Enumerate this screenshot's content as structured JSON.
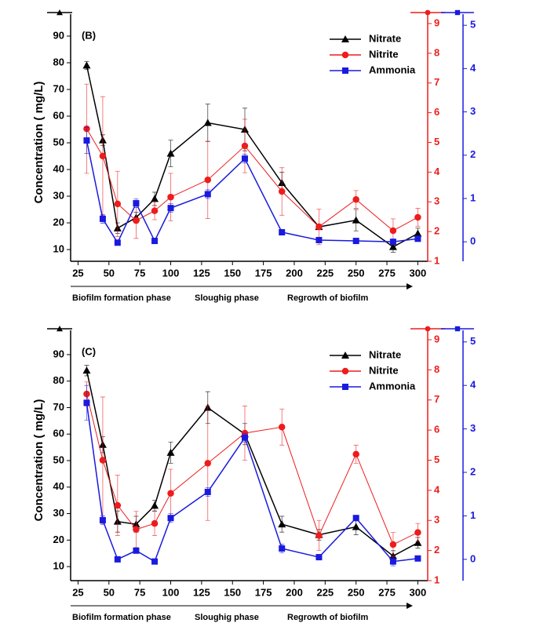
{
  "chart_data": [
    {
      "type": "line",
      "panel_label": "(B)",
      "y_label": "Concentration ( mg/L)",
      "x": [
        32,
        45,
        57,
        72,
        87,
        100,
        130,
        160,
        190,
        220,
        250,
        280,
        300
      ],
      "xlim": [
        19,
        308
      ],
      "xticks": [
        25,
        50,
        75,
        100,
        125,
        150,
        175,
        200,
        225,
        250,
        275,
        300
      ],
      "ylim": [
        5.6,
        94.7
      ],
      "yticks": [
        10,
        20,
        30,
        40,
        50,
        60,
        70,
        80,
        90
      ],
      "y2lim": [
        1,
        9
      ],
      "y2ticks": [
        1,
        2,
        3,
        4,
        5,
        6,
        7,
        8,
        9
      ],
      "y3lim": [
        -0.45,
        5.04
      ],
      "y3ticks": [
        0,
        1,
        2,
        3,
        4,
        5
      ],
      "annotations": [
        "Biofilm formation phase",
        "Sloughig phase",
        "Regrowth of biofilm"
      ],
      "series": [
        {
          "name": "Nitrate",
          "color": "#000000",
          "marker": "triangle",
          "axis": "y",
          "values": [
            79,
            51,
            18,
            22,
            29,
            46,
            57.5,
            55,
            35,
            18.5,
            21,
            11,
            16
          ],
          "errors": [
            1.5,
            2,
            2,
            2,
            2.5,
            5,
            7,
            8,
            4,
            1,
            4,
            2,
            2
          ]
        },
        {
          "name": "Nitrite",
          "color": "#ee1c1c",
          "marker": "circle",
          "axis": "y2",
          "values": [
            5.46,
            4.54,
            2.93,
            2.37,
            2.7,
            3.16,
            3.74,
            4.88,
            3.35,
            2.16,
            3.08,
            2.03,
            2.48
          ],
          "errors": [
            1.5,
            2,
            1.1,
            0.6,
            0.3,
            0.8,
            1.3,
            0.9,
            0.8,
            0.6,
            0.3,
            0.4,
            0.3
          ]
        },
        {
          "name": "Ammonia",
          "color": "#1a1adf",
          "marker": "square",
          "axis": "y3",
          "values": [
            2.34,
            0.53,
            -0.02,
            0.89,
            0.02,
            0.78,
            1.1,
            1.92,
            0.22,
            0.04,
            0.02,
            0,
            0.07
          ],
          "errors": [
            0.3,
            0.1,
            0.05,
            0.1,
            0.05,
            0.1,
            0.1,
            0.1,
            0.05,
            0.05,
            0.05,
            0.05,
            0.05
          ]
        }
      ]
    },
    {
      "type": "line",
      "panel_label": "(C)",
      "y_label": "Concentration ( mg/L)",
      "x": [
        32,
        45,
        57,
        72,
        87,
        100,
        130,
        160,
        190,
        220,
        250,
        280,
        300
      ],
      "xlim": [
        19,
        308
      ],
      "xticks": [
        25,
        50,
        75,
        100,
        125,
        150,
        175,
        200,
        225,
        250,
        275,
        300
      ],
      "ylim": [
        4.7,
        95.6
      ],
      "yticks": [
        10,
        20,
        30,
        40,
        50,
        60,
        70,
        80,
        90
      ],
      "y2lim": [
        1,
        9
      ],
      "y2ticks": [
        1,
        2,
        3,
        4,
        5,
        6,
        7,
        8,
        9
      ],
      "y3lim": [
        -0.49,
        5.05
      ],
      "y3ticks": [
        0,
        1,
        2,
        3,
        4,
        5
      ],
      "annotations": [
        "Biofilm formation phase",
        "Sloughig phase",
        "Regrowth of biofilm"
      ],
      "series": [
        {
          "name": "Nitrate",
          "color": "#000000",
          "marker": "triangle",
          "axis": "y",
          "values": [
            84,
            56,
            27,
            26,
            33,
            53,
            70,
            60,
            26,
            22,
            25,
            14,
            19
          ],
          "errors": [
            2,
            3,
            4,
            3,
            2,
            4,
            6,
            4,
            3,
            2,
            3,
            2,
            2
          ]
        },
        {
          "name": "Nitrite",
          "color": "#ee1c1c",
          "marker": "circle",
          "axis": "y2",
          "values": [
            7.2,
            5.0,
            3.5,
            2.7,
            2.9,
            3.9,
            4.9,
            5.9,
            6.1,
            2.5,
            5.2,
            2.2,
            2.6
          ],
          "errors": [
            0.4,
            2.1,
            1.0,
            0.6,
            0.4,
            0.8,
            1.9,
            0.9,
            0.6,
            0.5,
            0.3,
            0.4,
            0.3
          ]
        },
        {
          "name": "Ammonia",
          "color": "#1a1adf",
          "marker": "square",
          "axis": "y3",
          "values": [
            3.6,
            0.9,
            0.0,
            0.2,
            -0.05,
            0.95,
            1.55,
            2.8,
            0.25,
            0.05,
            0.95,
            -0.05,
            0.02
          ],
          "errors": [
            0.4,
            0.1,
            0.05,
            0.05,
            0.05,
            0.1,
            0.1,
            0.1,
            0.1,
            0.05,
            0.05,
            0.1,
            0.05
          ]
        }
      ]
    }
  ]
}
